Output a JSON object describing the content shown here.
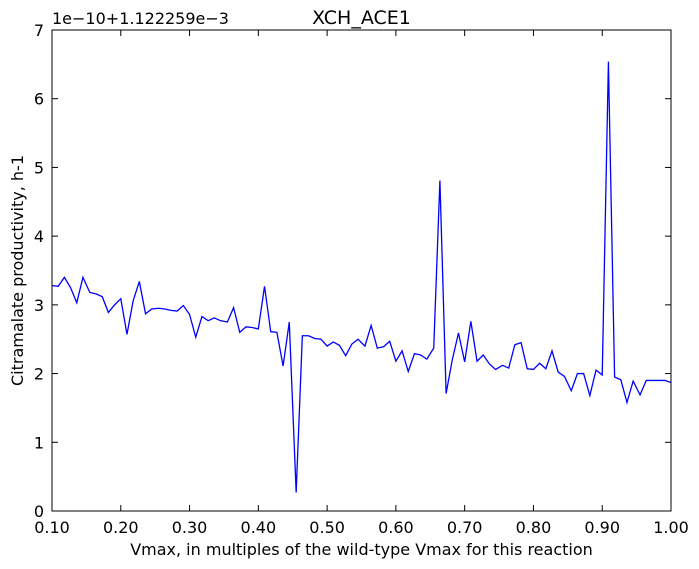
{
  "chart_data": {
    "type": "line",
    "title": "XCH_ACE1",
    "xlabel": "Vmax, in multiples of the wild-type Vmax for this reaction",
    "ylabel": "Citramalate productivity, h-1",
    "offset_text": "1e−10+1.122259e−3",
    "xlim": [
      0.1,
      1.0
    ],
    "ylim": [
      0,
      7
    ],
    "x_ticks": [
      0.1,
      0.2,
      0.3,
      0.4,
      0.5,
      0.6,
      0.7,
      0.8,
      0.9,
      1.0
    ],
    "x_tick_labels": [
      "0.10",
      "0.20",
      "0.30",
      "0.40",
      "0.50",
      "0.60",
      "0.70",
      "0.80",
      "0.90",
      "1.00"
    ],
    "y_ticks": [
      0,
      1,
      2,
      3,
      4,
      5,
      6,
      7
    ],
    "y_tick_labels": [
      "0",
      "1",
      "2",
      "3",
      "4",
      "5",
      "6",
      "7"
    ],
    "grid": false,
    "color": "#0000ff",
    "series": [
      {
        "x": [
          0.1,
          0.109,
          0.118,
          0.127,
          0.136,
          0.145,
          0.155,
          0.164,
          0.173,
          0.182,
          0.191,
          0.2,
          0.209,
          0.218,
          0.227,
          0.236,
          0.245,
          0.255,
          0.264,
          0.273,
          0.282,
          0.291,
          0.3,
          0.309,
          0.318,
          0.327,
          0.336,
          0.345,
          0.355,
          0.364,
          0.373,
          0.382,
          0.391,
          0.4,
          0.409,
          0.418,
          0.427,
          0.436,
          0.445,
          0.455,
          0.464,
          0.473,
          0.482,
          0.491,
          0.5,
          0.509,
          0.518,
          0.527,
          0.536,
          0.545,
          0.555,
          0.564,
          0.573,
          0.582,
          0.591,
          0.6,
          0.609,
          0.618,
          0.627,
          0.636,
          0.645,
          0.655,
          0.664,
          0.673,
          0.682,
          0.691,
          0.7,
          0.709,
          0.718,
          0.727,
          0.736,
          0.745,
          0.755,
          0.764,
          0.773,
          0.782,
          0.791,
          0.8,
          0.809,
          0.818,
          0.827,
          0.836,
          0.845,
          0.855,
          0.864,
          0.873,
          0.882,
          0.891,
          0.9,
          0.909,
          0.918,
          0.927,
          0.936,
          0.945,
          0.955,
          0.964,
          0.973,
          0.982,
          0.991,
          1.0
        ],
        "y": [
          3.28,
          3.27,
          3.4,
          3.25,
          3.03,
          3.4,
          3.18,
          3.16,
          3.12,
          2.89,
          3.0,
          3.09,
          2.57,
          3.06,
          3.34,
          2.87,
          2.94,
          2.95,
          2.94,
          2.92,
          2.91,
          2.99,
          2.86,
          2.53,
          2.83,
          2.77,
          2.81,
          2.77,
          2.75,
          2.96,
          2.6,
          2.68,
          2.67,
          2.65,
          3.27,
          2.61,
          2.6,
          2.11,
          2.75,
          0.27,
          2.55,
          2.55,
          2.51,
          2.5,
          2.4,
          2.46,
          2.41,
          2.26,
          2.43,
          2.5,
          2.4,
          2.7,
          2.37,
          2.39,
          2.47,
          2.18,
          2.33,
          2.03,
          2.29,
          2.27,
          2.21,
          2.37,
          4.81,
          1.71,
          2.2,
          2.59,
          2.17,
          2.76,
          2.18,
          2.27,
          2.14,
          2.06,
          2.12,
          2.08,
          2.42,
          2.45,
          2.07,
          2.06,
          2.15,
          2.07,
          2.33,
          2.02,
          1.96,
          1.75,
          2.0,
          2.0,
          1.68,
          2.05,
          1.98,
          6.54,
          1.95,
          1.91,
          1.58,
          1.89,
          1.69,
          1.9,
          1.9,
          1.9,
          1.9,
          1.87
        ]
      }
    ]
  }
}
